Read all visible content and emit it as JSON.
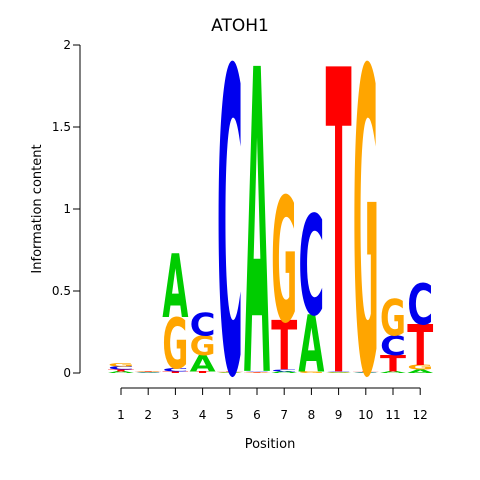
{
  "chart_data": {
    "type": "sequence-logo",
    "title": "ATOH1",
    "xlabel": "Position",
    "ylabel": "Information content",
    "ylim": [
      0,
      2
    ],
    "yticks": [
      0,
      0.5,
      1,
      1.5,
      2
    ],
    "ytick_labels": [
      "0",
      "0.5",
      "1",
      "1.5",
      "2"
    ],
    "positions": [
      "1",
      "2",
      "3",
      "4",
      "5",
      "6",
      "7",
      "8",
      "9",
      "10",
      "11",
      "12"
    ],
    "colors": {
      "A": "#00cc00",
      "C": "#0000ee",
      "G": "#ffa500",
      "T": "#ff0000"
    },
    "stacks": [
      [
        {
          "letter": "A",
          "height": 0.01
        },
        {
          "letter": "T",
          "height": 0.01
        },
        {
          "letter": "C",
          "height": 0.02
        },
        {
          "letter": "G",
          "height": 0.02
        }
      ],
      [
        {
          "letter": "A",
          "height": 0.003
        },
        {
          "letter": "C",
          "height": 0.003
        },
        {
          "letter": "G",
          "height": 0.003
        },
        {
          "letter": "T",
          "height": 0.003
        }
      ],
      [
        {
          "letter": "T",
          "height": 0.01
        },
        {
          "letter": "C",
          "height": 0.02
        },
        {
          "letter": "G",
          "height": 0.31
        },
        {
          "letter": "A",
          "height": 0.39
        }
      ],
      [
        {
          "letter": "T",
          "height": 0.01
        },
        {
          "letter": "A",
          "height": 0.1
        },
        {
          "letter": "G",
          "height": 0.12
        },
        {
          "letter": "C",
          "height": 0.14
        }
      ],
      [
        {
          "letter": "A",
          "height": 0.003
        },
        {
          "letter": "G",
          "height": 0.003
        },
        {
          "letter": "T",
          "height": 0.005
        },
        {
          "letter": "C",
          "height": 1.86
        }
      ],
      [
        {
          "letter": "T",
          "height": 0.003
        },
        {
          "letter": "G",
          "height": 0.005
        },
        {
          "letter": "C",
          "height": 0.005
        },
        {
          "letter": "A",
          "height": 1.86
        }
      ],
      [
        {
          "letter": "A",
          "height": 0.01
        },
        {
          "letter": "C",
          "height": 0.01
        },
        {
          "letter": "T",
          "height": 0.3
        },
        {
          "letter": "G",
          "height": 0.76
        }
      ],
      [
        {
          "letter": "G",
          "height": 0.01
        },
        {
          "letter": "A",
          "height": 0.35
        },
        {
          "letter": "C",
          "height": 0.61
        }
      ],
      [
        {
          "letter": "A",
          "height": 0.003
        },
        {
          "letter": "G",
          "height": 0.003
        },
        {
          "letter": "C",
          "height": 0.004
        },
        {
          "letter": "T",
          "height": 1.86
        }
      ],
      [
        {
          "letter": "A",
          "height": 0.003
        },
        {
          "letter": "C",
          "height": 0.004
        },
        {
          "letter": "T",
          "height": 0.004
        },
        {
          "letter": "G",
          "height": 1.86
        }
      ],
      [
        {
          "letter": "A",
          "height": 0.01
        },
        {
          "letter": "T",
          "height": 0.1
        },
        {
          "letter": "C",
          "height": 0.12
        },
        {
          "letter": "G",
          "height": 0.22
        }
      ],
      [
        {
          "letter": "A",
          "height": 0.02
        },
        {
          "letter": "G",
          "height": 0.03
        },
        {
          "letter": "T",
          "height": 0.25
        },
        {
          "letter": "C",
          "height": 0.25
        }
      ]
    ]
  }
}
